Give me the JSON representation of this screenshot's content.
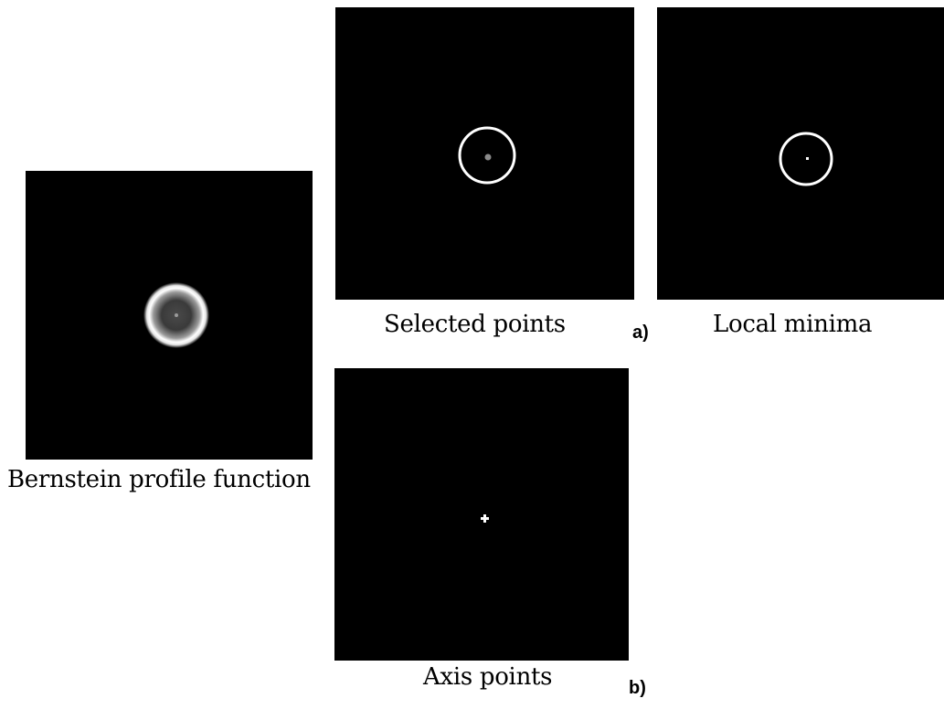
{
  "figure": {
    "panels": {
      "bernstein": {
        "caption": "Bernstein profile function"
      },
      "selected": {
        "caption": "Selected points"
      },
      "minima": {
        "caption": "Local minima"
      },
      "axis": {
        "caption": "Axis points"
      }
    },
    "labels": {
      "a": "a)",
      "b": "b)"
    },
    "colors": {
      "panel_background": "#000000",
      "feature": "#ffffff",
      "page_background": "#ffffff"
    }
  }
}
